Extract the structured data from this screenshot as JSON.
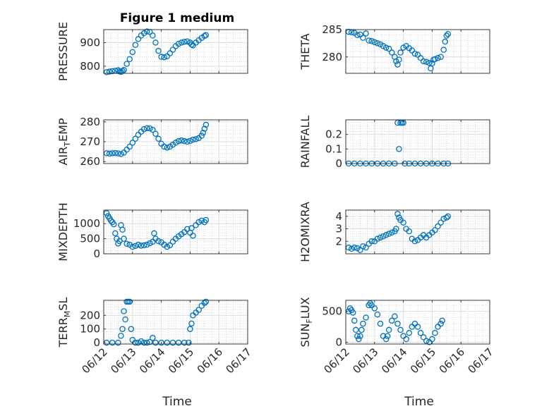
{
  "figure": {
    "title": "Figure 1 medium",
    "xlabel": "Time",
    "x_tick_labels": [
      "06/12",
      "06/13",
      "06/14",
      "06/15",
      "06/16",
      "06/17"
    ],
    "marker_color": "#0072BD"
  },
  "chart_data": [
    {
      "type": "scatter",
      "name": "pressure",
      "ylabel": "PRESSURE",
      "xlim": [
        0,
        5
      ],
      "ylim": [
        770,
        955
      ],
      "yticks": [
        800,
        900
      ],
      "grid": true,
      "points": [
        [
          0.1,
          775
        ],
        [
          0.2,
          777
        ],
        [
          0.3,
          779
        ],
        [
          0.4,
          781
        ],
        [
          0.5,
          783
        ],
        [
          0.55,
          778
        ],
        [
          0.6,
          776
        ],
        [
          0.65,
          780
        ],
        [
          0.7,
          784
        ],
        [
          0.8,
          810
        ],
        [
          0.9,
          830
        ],
        [
          1.0,
          860
        ],
        [
          1.1,
          890
        ],
        [
          1.2,
          915
        ],
        [
          1.3,
          930
        ],
        [
          1.4,
          940
        ],
        [
          1.5,
          947
        ],
        [
          1.6,
          945
        ],
        [
          1.7,
          930
        ],
        [
          1.8,
          900
        ],
        [
          1.9,
          865
        ],
        [
          2.0,
          840
        ],
        [
          2.1,
          838
        ],
        [
          2.2,
          842
        ],
        [
          2.3,
          855
        ],
        [
          2.4,
          870
        ],
        [
          2.5,
          885
        ],
        [
          2.6,
          895
        ],
        [
          2.7,
          900
        ],
        [
          2.8,
          903
        ],
        [
          2.9,
          905
        ],
        [
          3.0,
          900
        ],
        [
          3.05,
          892
        ],
        [
          3.1,
          888
        ],
        [
          3.2,
          900
        ],
        [
          3.3,
          910
        ],
        [
          3.4,
          920
        ],
        [
          3.5,
          928
        ],
        [
          3.55,
          932
        ]
      ]
    },
    {
      "type": "scatter",
      "name": "theta",
      "ylabel": "THETA",
      "xlim": [
        0,
        5
      ],
      "ylim": [
        277,
        285
      ],
      "yticks": [
        280,
        285
      ],
      "grid": true,
      "points": [
        [
          0.1,
          284.6
        ],
        [
          0.2,
          284.5
        ],
        [
          0.3,
          284.4
        ],
        [
          0.4,
          284.0
        ],
        [
          0.5,
          284.1
        ],
        [
          0.6,
          283.5
        ],
        [
          0.7,
          284.3
        ],
        [
          0.8,
          283.0
        ],
        [
          0.9,
          282.9
        ],
        [
          1.0,
          282.7
        ],
        [
          1.1,
          282.5
        ],
        [
          1.2,
          282.3
        ],
        [
          1.3,
          282.0
        ],
        [
          1.4,
          281.7
        ],
        [
          1.5,
          281.5
        ],
        [
          1.6,
          280.8
        ],
        [
          1.7,
          280.0
        ],
        [
          1.75,
          279.2
        ],
        [
          1.8,
          278.6
        ],
        [
          1.85,
          279.5
        ],
        [
          1.9,
          280.8
        ],
        [
          2.0,
          281.7
        ],
        [
          2.1,
          282.0
        ],
        [
          2.2,
          281.6
        ],
        [
          2.3,
          281.2
        ],
        [
          2.4,
          280.6
        ],
        [
          2.5,
          280.4
        ],
        [
          2.6,
          279.8
        ],
        [
          2.7,
          279.2
        ],
        [
          2.8,
          279.1
        ],
        [
          2.9,
          278.9
        ],
        [
          2.95,
          277.9
        ],
        [
          3.0,
          278.8
        ],
        [
          3.05,
          279.5
        ],
        [
          3.1,
          279.6
        ],
        [
          3.2,
          279.8
        ],
        [
          3.3,
          280.0
        ],
        [
          3.4,
          281.3
        ],
        [
          3.45,
          282.8
        ],
        [
          3.5,
          283.9
        ],
        [
          3.55,
          284.2
        ]
      ]
    },
    {
      "type": "scatter",
      "name": "air-temp",
      "ylabel_main": "AIR",
      "ylabel_sub": "T",
      "ylabel_rest": "EMP",
      "xlim": [
        0,
        5
      ],
      "ylim": [
        259,
        281
      ],
      "yticks": [
        260,
        270,
        280
      ],
      "grid": true,
      "points": [
        [
          0.1,
          264.2
        ],
        [
          0.2,
          264.0
        ],
        [
          0.3,
          264.2
        ],
        [
          0.4,
          264.3
        ],
        [
          0.5,
          264.1
        ],
        [
          0.6,
          263.8
        ],
        [
          0.7,
          264.5
        ],
        [
          0.8,
          266.0
        ],
        [
          0.9,
          267.5
        ],
        [
          1.0,
          269.5
        ],
        [
          1.1,
          271.5
        ],
        [
          1.2,
          273.5
        ],
        [
          1.3,
          275.0
        ],
        [
          1.4,
          276.3
        ],
        [
          1.5,
          276.8
        ],
        [
          1.6,
          276.7
        ],
        [
          1.7,
          276.0
        ],
        [
          1.8,
          274.0
        ],
        [
          1.9,
          271.5
        ],
        [
          2.0,
          269.0
        ],
        [
          2.1,
          267.5
        ],
        [
          2.2,
          267.0
        ],
        [
          2.3,
          267.5
        ],
        [
          2.4,
          268.5
        ],
        [
          2.5,
          269.5
        ],
        [
          2.6,
          270.3
        ],
        [
          2.7,
          270.6
        ],
        [
          2.8,
          270.3
        ],
        [
          2.9,
          270.0
        ],
        [
          3.0,
          270.4
        ],
        [
          3.1,
          271.0
        ],
        [
          3.2,
          271.3
        ],
        [
          3.3,
          271.8
        ],
        [
          3.4,
          273.0
        ],
        [
          3.45,
          274.5
        ],
        [
          3.5,
          276.5
        ],
        [
          3.55,
          278.5
        ]
      ]
    },
    {
      "type": "scatter",
      "name": "rainfall",
      "ylabel": "RAINFALL",
      "xlim": [
        0,
        5
      ],
      "ylim": [
        0,
        0.3
      ],
      "yticks": [
        0,
        0.1,
        0.2
      ],
      "grid": true,
      "points": [
        [
          0.1,
          0
        ],
        [
          0.3,
          0
        ],
        [
          0.5,
          0
        ],
        [
          0.7,
          0
        ],
        [
          0.9,
          0
        ],
        [
          1.1,
          0
        ],
        [
          1.3,
          0
        ],
        [
          1.5,
          0
        ],
        [
          1.7,
          0
        ],
        [
          1.8,
          0.28
        ],
        [
          1.85,
          0.1
        ],
        [
          1.9,
          0.28
        ],
        [
          1.95,
          0.28
        ],
        [
          2.0,
          0.28
        ],
        [
          2.05,
          0
        ],
        [
          2.2,
          0
        ],
        [
          2.4,
          0
        ],
        [
          2.6,
          0
        ],
        [
          2.8,
          0
        ],
        [
          3.0,
          0
        ],
        [
          3.2,
          0
        ],
        [
          3.4,
          0
        ],
        [
          3.55,
          0
        ]
      ]
    },
    {
      "type": "scatter",
      "name": "mixdepth",
      "ylabel": "MIXDEPTH",
      "xlim": [
        0,
        5
      ],
      "ylim": [
        0,
        1450
      ],
      "yticks": [
        0,
        500,
        1000
      ],
      "grid": true,
      "points": [
        [
          0.1,
          1350
        ],
        [
          0.15,
          1250
        ],
        [
          0.2,
          1180
        ],
        [
          0.25,
          1100
        ],
        [
          0.3,
          1050
        ],
        [
          0.35,
          980
        ],
        [
          0.4,
          680
        ],
        [
          0.45,
          500
        ],
        [
          0.5,
          340
        ],
        [
          0.55,
          420
        ],
        [
          0.6,
          950
        ],
        [
          0.65,
          800
        ],
        [
          0.7,
          500
        ],
        [
          0.8,
          330
        ],
        [
          0.9,
          300
        ],
        [
          1.0,
          230
        ],
        [
          1.1,
          260
        ],
        [
          1.2,
          300
        ],
        [
          1.3,
          270
        ],
        [
          1.4,
          280
        ],
        [
          1.5,
          300
        ],
        [
          1.6,
          350
        ],
        [
          1.7,
          400
        ],
        [
          1.75,
          680
        ],
        [
          1.8,
          500
        ],
        [
          1.9,
          420
        ],
        [
          2.0,
          380
        ],
        [
          2.1,
          300
        ],
        [
          2.2,
          230
        ],
        [
          2.3,
          280
        ],
        [
          2.4,
          400
        ],
        [
          2.5,
          500
        ],
        [
          2.6,
          580
        ],
        [
          2.7,
          650
        ],
        [
          2.8,
          720
        ],
        [
          2.9,
          820
        ],
        [
          3.0,
          700
        ],
        [
          3.05,
          850
        ],
        [
          3.1,
          600
        ],
        [
          3.2,
          950
        ],
        [
          3.3,
          1050
        ],
        [
          3.4,
          1100
        ],
        [
          3.5,
          1050
        ],
        [
          3.55,
          1120
        ]
      ]
    },
    {
      "type": "scatter",
      "name": "h2omixra",
      "ylabel": "H2OMIXRA",
      "xlim": [
        0,
        5
      ],
      "ylim": [
        1,
        4.5
      ],
      "yticks": [
        2,
        3,
        4
      ],
      "grid": true,
      "points": [
        [
          0.1,
          1.5
        ],
        [
          0.2,
          1.4
        ],
        [
          0.3,
          1.5
        ],
        [
          0.4,
          1.45
        ],
        [
          0.5,
          1.3
        ],
        [
          0.6,
          1.6
        ],
        [
          0.7,
          1.5
        ],
        [
          0.8,
          1.8
        ],
        [
          0.9,
          2.0
        ],
        [
          1.0,
          2.0
        ],
        [
          1.1,
          2.2
        ],
        [
          1.2,
          2.3
        ],
        [
          1.3,
          2.4
        ],
        [
          1.4,
          2.5
        ],
        [
          1.5,
          2.6
        ],
        [
          1.6,
          2.7
        ],
        [
          1.7,
          2.8
        ],
        [
          1.75,
          3.0
        ],
        [
          1.8,
          4.2
        ],
        [
          1.85,
          3.9
        ],
        [
          1.9,
          3.7
        ],
        [
          2.0,
          3.5
        ],
        [
          2.1,
          3.0
        ],
        [
          2.2,
          2.8
        ],
        [
          2.3,
          2.2
        ],
        [
          2.4,
          2.0
        ],
        [
          2.5,
          2.1
        ],
        [
          2.6,
          2.3
        ],
        [
          2.7,
          2.5
        ],
        [
          2.8,
          2.3
        ],
        [
          2.9,
          2.5
        ],
        [
          3.0,
          2.7
        ],
        [
          3.1,
          2.9
        ],
        [
          3.2,
          3.2
        ],
        [
          3.3,
          3.5
        ],
        [
          3.4,
          3.8
        ],
        [
          3.5,
          3.9
        ],
        [
          3.55,
          4.0
        ]
      ]
    },
    {
      "type": "scatter",
      "name": "terr-msl",
      "ylabel_main": "TERR",
      "ylabel_sub": "M",
      "ylabel_rest": "SL",
      "xlim": [
        0,
        5
      ],
      "ylim": [
        -10,
        310
      ],
      "yticks": [
        0,
        100,
        200
      ],
      "grid": true,
      "points": [
        [
          0.1,
          0
        ],
        [
          0.3,
          0
        ],
        [
          0.5,
          0
        ],
        [
          0.6,
          50
        ],
        [
          0.65,
          100
        ],
        [
          0.7,
          230
        ],
        [
          0.75,
          170
        ],
        [
          0.8,
          300
        ],
        [
          0.85,
          300
        ],
        [
          0.9,
          300
        ],
        [
          0.95,
          100
        ],
        [
          1.0,
          20
        ],
        [
          1.1,
          0
        ],
        [
          1.2,
          0
        ],
        [
          1.3,
          10
        ],
        [
          1.4,
          0
        ],
        [
          1.5,
          0
        ],
        [
          1.6,
          5
        ],
        [
          1.7,
          35
        ],
        [
          1.8,
          0
        ],
        [
          2.0,
          0
        ],
        [
          2.2,
          0
        ],
        [
          2.4,
          0
        ],
        [
          2.6,
          0
        ],
        [
          2.8,
          0
        ],
        [
          2.95,
          0
        ],
        [
          3.0,
          100
        ],
        [
          3.05,
          140
        ],
        [
          3.1,
          200
        ],
        [
          3.2,
          220
        ],
        [
          3.3,
          240
        ],
        [
          3.4,
          270
        ],
        [
          3.5,
          290
        ],
        [
          3.55,
          300
        ]
      ]
    },
    {
      "type": "scatter",
      "name": "sun-flux",
      "ylabel_main": "SUN",
      "ylabel_sub": "F",
      "ylabel_rest": "LUX",
      "xlim": [
        0,
        5
      ],
      "ylim": [
        -30,
        680
      ],
      "yticks": [
        0,
        500
      ],
      "grid": true,
      "points": [
        [
          0.1,
          500
        ],
        [
          0.15,
          550
        ],
        [
          0.2,
          520
        ],
        [
          0.25,
          480
        ],
        [
          0.3,
          350
        ],
        [
          0.35,
          200
        ],
        [
          0.4,
          100
        ],
        [
          0.45,
          50
        ],
        [
          0.5,
          100
        ],
        [
          0.55,
          200
        ],
        [
          0.6,
          300
        ],
        [
          0.7,
          400
        ],
        [
          0.8,
          600
        ],
        [
          0.85,
          630
        ],
        [
          0.9,
          600
        ],
        [
          1.0,
          550
        ],
        [
          1.1,
          450
        ],
        [
          1.2,
          300
        ],
        [
          1.3,
          100
        ],
        [
          1.4,
          50
        ],
        [
          1.45,
          100
        ],
        [
          1.5,
          200
        ],
        [
          1.6,
          350
        ],
        [
          1.7,
          420
        ],
        [
          1.8,
          300
        ],
        [
          1.9,
          200
        ],
        [
          2.0,
          100
        ],
        [
          2.1,
          50
        ],
        [
          2.2,
          150
        ],
        [
          2.3,
          250
        ],
        [
          2.4,
          300
        ],
        [
          2.5,
          250
        ],
        [
          2.6,
          150
        ],
        [
          2.7,
          80
        ],
        [
          2.8,
          20
        ],
        [
          2.9,
          0
        ],
        [
          3.0,
          50
        ],
        [
          3.1,
          150
        ],
        [
          3.2,
          250
        ],
        [
          3.3,
          300
        ],
        [
          3.35,
          350
        ]
      ]
    }
  ]
}
